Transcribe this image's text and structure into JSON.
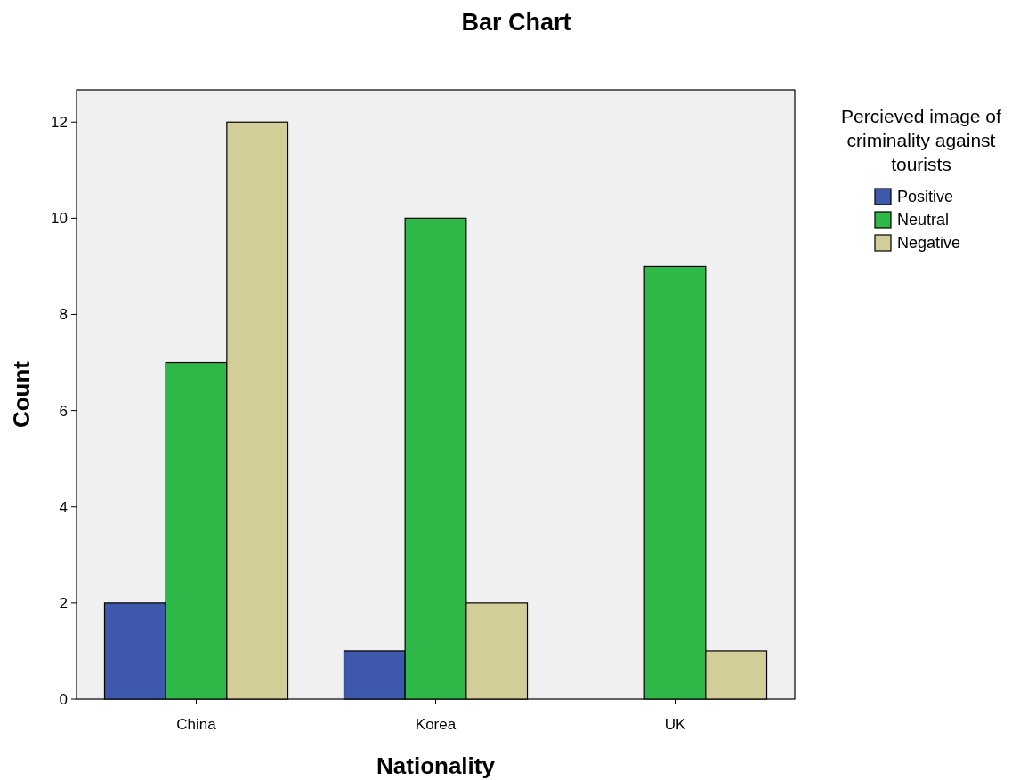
{
  "chart_data": {
    "type": "bar",
    "title": "Bar Chart",
    "xlabel": "Nationality",
    "ylabel": "Count",
    "legend_title": "Percieved image of criminality against tourists",
    "categories": [
      "China",
      "Korea",
      "UK"
    ],
    "series": [
      {
        "name": "Positive",
        "color": "#3e58ac",
        "values": [
          2,
          1,
          null
        ]
      },
      {
        "name": "Neutral",
        "color": "#2eb848",
        "values": [
          7,
          10,
          9
        ]
      },
      {
        "name": "Negative",
        "color": "#d3ce97",
        "values": [
          12,
          2,
          1
        ]
      }
    ],
    "ylim": [
      0,
      12.67
    ],
    "yticks": [
      0,
      2,
      4,
      6,
      8,
      10,
      12
    ],
    "grid": false,
    "legend": "top right"
  }
}
